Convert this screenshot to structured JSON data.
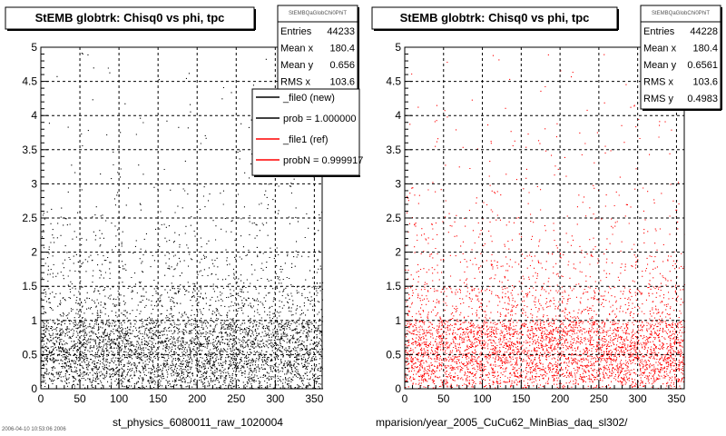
{
  "chart_data": [
    {
      "type": "scatter",
      "title": "StEMB globtrk: Chisq0 vs phi, tpc",
      "xlim": [
        0,
        360
      ],
      "ylim": [
        0,
        5
      ],
      "xticks": [
        0,
        50,
        100,
        150,
        200,
        250,
        300,
        350
      ],
      "yticks": [
        0,
        0.5,
        1,
        1.5,
        2,
        2.5,
        3,
        3.5,
        4,
        4.5,
        5
      ],
      "grid": true,
      "marker_color": "#000000",
      "density_profile": {
        "y_bins": [
          0.0,
          0.1,
          0.3,
          0.5,
          0.7,
          0.9,
          1.0,
          1.5,
          2.0,
          2.5,
          3.0,
          4.0,
          5.0
        ],
        "relative_density": [
          0.5,
          0.85,
          1.0,
          1.0,
          0.9,
          0.8,
          0.28,
          0.12,
          0.06,
          0.035,
          0.015,
          0.006
        ]
      },
      "stats": {
        "name": "StEMBQaGlobChi0PhiT",
        "entries": [
          {
            "label": "Entries",
            "value": "44233"
          },
          {
            "label": "Mean x",
            "value": "180.4"
          },
          {
            "label": "Mean y",
            "value": "0.656"
          },
          {
            "label": "RMS x",
            "value": "103.6"
          }
        ]
      },
      "legend": {
        "placement": "top-right",
        "entries": [
          {
            "label": "_file0 (new)",
            "color": "#000000"
          },
          {
            "label": "prob = 1.000000",
            "color": "#000000"
          },
          {
            "label": "_file1 (ref)",
            "color": "#ff0000"
          },
          {
            "label": "probN = 0.999917",
            "color": "#ff0000"
          }
        ]
      },
      "footer": "st_physics_6080011_raw_1020004"
    },
    {
      "type": "scatter",
      "title": "StEMB globtrk: Chisq0 vs phi, tpc",
      "xlim": [
        0,
        360
      ],
      "ylim": [
        0,
        5
      ],
      "xticks": [
        0,
        50,
        100,
        150,
        200,
        250,
        300,
        350
      ],
      "yticks": [
        0,
        0.5,
        1,
        1.5,
        2,
        2.5,
        3,
        3.5,
        4,
        4.5,
        5
      ],
      "grid": true,
      "marker_color": "#ff0000",
      "density_profile": {
        "y_bins": [
          0.0,
          0.1,
          0.3,
          0.5,
          0.7,
          0.9,
          1.0,
          1.5,
          2.0,
          2.5,
          3.0,
          4.0,
          5.0
        ],
        "relative_density": [
          0.5,
          0.85,
          1.0,
          1.0,
          0.9,
          0.8,
          0.28,
          0.12,
          0.06,
          0.035,
          0.015,
          0.006
        ]
      },
      "stats": {
        "name": "StEMBQaGlobChi0PhiT",
        "entries": [
          {
            "label": "Entries",
            "value": "44228"
          },
          {
            "label": "Mean x",
            "value": "180.4"
          },
          {
            "label": "Mean y",
            "value": "0.6561"
          },
          {
            "label": "RMS x",
            "value": "103.6"
          },
          {
            "label": "RMS y",
            "value": "0.4983"
          }
        ]
      },
      "footer": "mparision/year_2005_CuCu62_MinBias_daq_sl302/"
    }
  ],
  "page": {
    "side_text": "2006-04-10 10:53:06 2006"
  }
}
